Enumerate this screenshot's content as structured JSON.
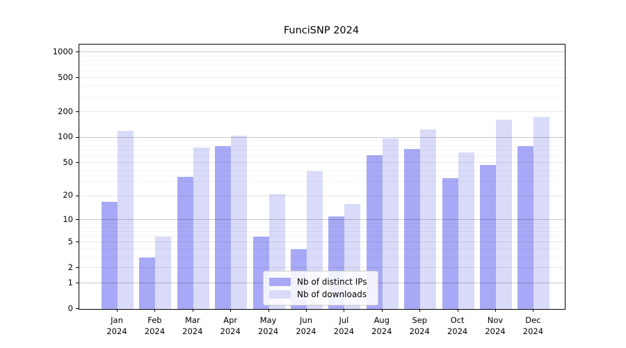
{
  "chart_data": {
    "type": "bar",
    "title": "FunciSNP 2024",
    "categories": [
      "Jan",
      "Feb",
      "Mar",
      "Apr",
      "May",
      "Jun",
      "Jul",
      "Aug",
      "Sep",
      "Oct",
      "Nov",
      "Dec"
    ],
    "xtick_year": "2024",
    "series": [
      {
        "name": "Nb of distinct IPs",
        "color": "#a8a9f6",
        "values": [
          17,
          3,
          34,
          79,
          6,
          4,
          11,
          62,
          73,
          33,
          47,
          80
        ]
      },
      {
        "name": "Nb of downloads",
        "color": "#dadbf9",
        "values": [
          120,
          6,
          76,
          105,
          21,
          40,
          16,
          97,
          124,
          67,
          162,
          175
        ]
      }
    ],
    "yscale": "log1p",
    "yticks": [
      0,
      1,
      2,
      5,
      10,
      20,
      50,
      100,
      200,
      500,
      1000
    ],
    "ylim": [
      0,
      1237
    ],
    "grid": true,
    "legend_position": "lower center",
    "xlabel": "",
    "ylabel": ""
  },
  "colors": {
    "spine": "#000000",
    "grid_major": "#c7c7c7",
    "grid_minor": "#ebebeb",
    "background": "#ffffff"
  }
}
